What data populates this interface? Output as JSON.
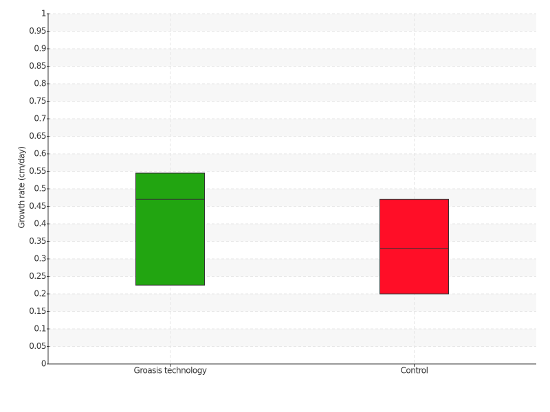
{
  "chart_data": {
    "type": "box",
    "y_label": "Growth rate (cm/day)",
    "categories": [
      "Groasis technology",
      "Control"
    ],
    "boxes": [
      {
        "q1": 0.225,
        "median": 0.47,
        "q3": 0.545,
        "color": "#22a511"
      },
      {
        "q1": 0.2,
        "median": 0.33,
        "q3": 0.47,
        "color": "#ff0e27"
      }
    ],
    "ylim": [
      0,
      1
    ],
    "yticks": [
      0,
      0.05,
      0.1,
      0.15,
      0.2,
      0.25,
      0.3,
      0.35,
      0.4,
      0.45,
      0.5,
      0.55,
      0.6,
      0.65,
      0.7,
      0.75,
      0.8,
      0.85,
      0.9,
      0.95,
      1
    ],
    "grid": true
  }
}
